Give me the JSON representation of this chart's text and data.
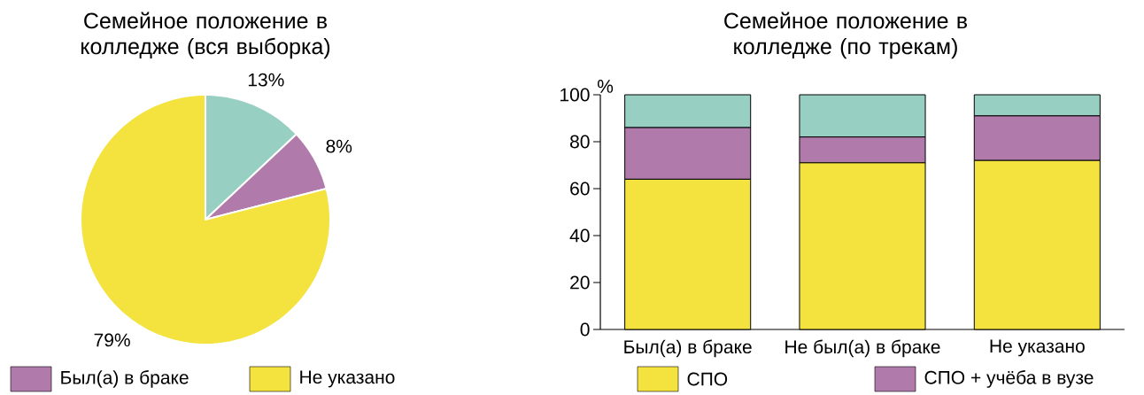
{
  "chart_data": [
    {
      "type": "pie",
      "title": "Семейное положение в колледже (вся выборка)",
      "categories": [
        null,
        "Был(а) в браке",
        "Не указано"
      ],
      "values": [
        13,
        8,
        79
      ],
      "colors": [
        "#97d0c2",
        "#b07aab",
        "#f4e23f"
      ],
      "value_labels": [
        "13%",
        "8%",
        "79%"
      ],
      "legend": "bottom"
    },
    {
      "type": "bar",
      "stacked": true,
      "title": "Семейное положение в колледже (по трекам)",
      "ylabel": "%",
      "categories": [
        "Был(а) в браке",
        "Не был(а) в браке",
        "Не указано"
      ],
      "ylim": [
        0,
        100
      ],
      "yticks": [
        0,
        20,
        40,
        60,
        80,
        100
      ],
      "legend": "bottom",
      "grid": false,
      "series": [
        {
          "name": "СПО",
          "color": "#f4e23f",
          "values": [
            64,
            71,
            72
          ]
        },
        {
          "name": "СПО + учёба в вузе",
          "color": "#b07aab",
          "values": [
            22,
            11,
            19
          ]
        },
        {
          "color": "#97d0c2",
          "values": [
            14,
            18,
            9
          ]
        }
      ]
    }
  ]
}
